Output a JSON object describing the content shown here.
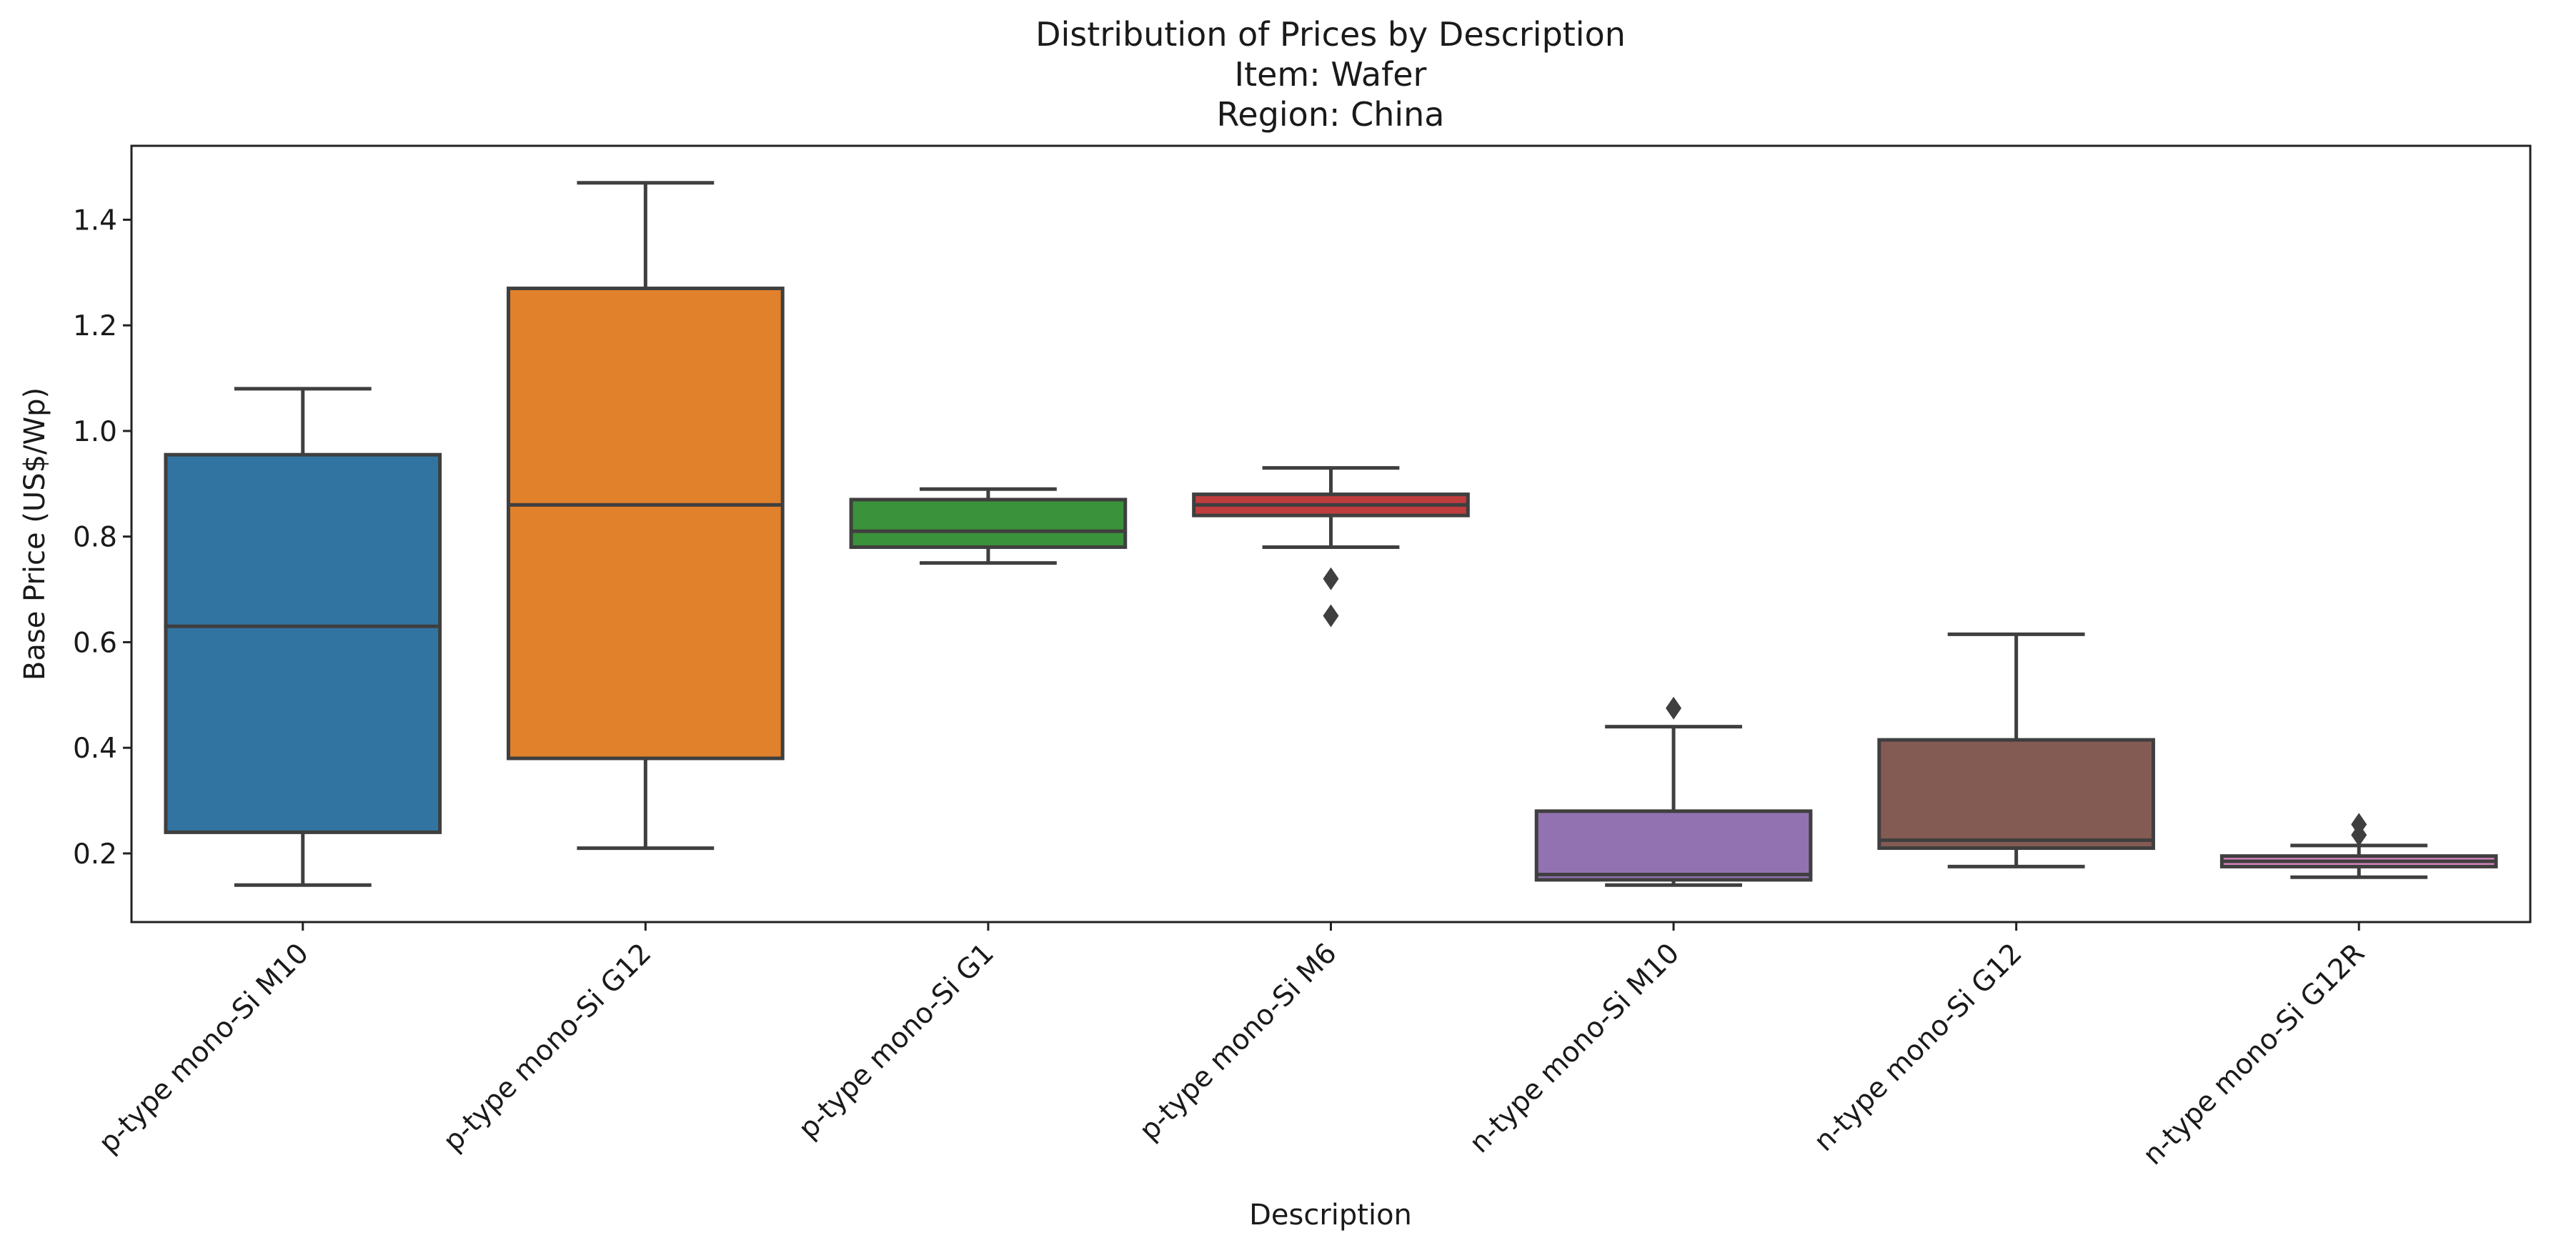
{
  "chart_data": {
    "type": "box",
    "title_lines": [
      "Distribution of Prices by Description",
      "Item: Wafer",
      "Region: China"
    ],
    "xlabel": "Description",
    "ylabel": "Base Price (US$/Wp)",
    "ylim": [
      0.07,
      1.54
    ],
    "yticks": [
      0.2,
      0.4,
      0.6,
      0.8,
      1.0,
      1.2,
      1.4
    ],
    "ytick_labels": [
      "0.2",
      "0.4",
      "0.6",
      "0.8",
      "1.0",
      "1.2",
      "1.4"
    ],
    "grid": false,
    "legend": "none",
    "categories": [
      "p-type mono-Si M10",
      "p-type mono-Si G12",
      "p-type mono-Si G1",
      "p-type mono-Si M6",
      "n-type mono-Si M10",
      "n-type mono-Si G12",
      "n-type mono-Si G12R"
    ],
    "boxes": [
      {
        "category": "p-type mono-Si M10",
        "color": "#3274a1",
        "whisker_low": 0.14,
        "q1": 0.24,
        "median": 0.63,
        "q3": 0.955,
        "whisker_high": 1.08,
        "outliers": []
      },
      {
        "category": "p-type mono-Si G12",
        "color": "#e1812c",
        "whisker_low": 0.21,
        "q1": 0.38,
        "median": 0.86,
        "q3": 1.27,
        "whisker_high": 1.47,
        "outliers": []
      },
      {
        "category": "p-type mono-Si G1",
        "color": "#3a923a",
        "whisker_low": 0.75,
        "q1": 0.78,
        "median": 0.81,
        "q3": 0.87,
        "whisker_high": 0.89,
        "outliers": []
      },
      {
        "category": "p-type mono-Si M6",
        "color": "#c03d3e",
        "whisker_low": 0.78,
        "q1": 0.84,
        "median": 0.86,
        "q3": 0.88,
        "whisker_high": 0.93,
        "outliers": [
          0.72,
          0.65
        ]
      },
      {
        "category": "n-type mono-Si M10",
        "color": "#9372b2",
        "whisker_low": 0.14,
        "q1": 0.15,
        "median": 0.16,
        "q3": 0.28,
        "whisker_high": 0.44,
        "outliers": [
          0.475
        ]
      },
      {
        "category": "n-type mono-Si G12",
        "color": "#845b53",
        "whisker_low": 0.175,
        "q1": 0.21,
        "median": 0.225,
        "q3": 0.415,
        "whisker_high": 0.615,
        "outliers": []
      },
      {
        "category": "n-type mono-Si G12R",
        "color": "#d684bd",
        "whisker_low": 0.155,
        "q1": 0.175,
        "median": 0.185,
        "q3": 0.195,
        "whisker_high": 0.215,
        "outliers": [
          0.235,
          0.255
        ]
      }
    ]
  }
}
